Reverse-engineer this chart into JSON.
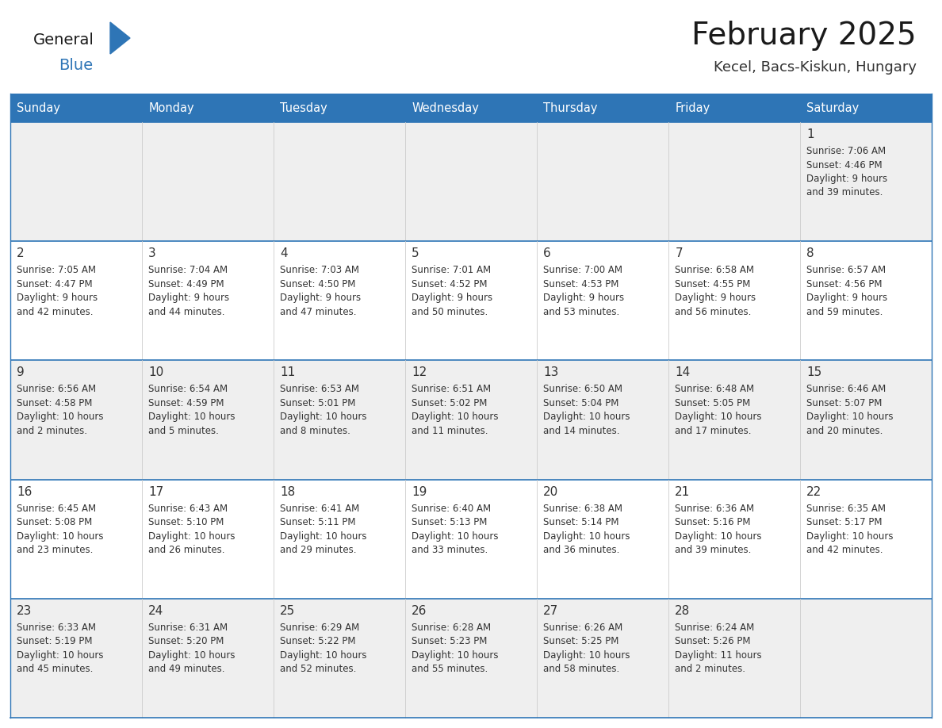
{
  "title": "February 2025",
  "subtitle": "Kecel, Bacs-Kiskun, Hungary",
  "days_of_week": [
    "Sunday",
    "Monday",
    "Tuesday",
    "Wednesday",
    "Thursday",
    "Friday",
    "Saturday"
  ],
  "header_bg": "#2E75B6",
  "header_text": "#FFFFFF",
  "row_bg_odd": "#EFEFEF",
  "row_bg_even": "#FFFFFF",
  "day_num_strip_odd": "#E2E2E2",
  "day_num_strip_even": "#F0F0F0",
  "cell_border_color": "#2E75B6",
  "cell_vert_color": "#CCCCCC",
  "day_num_color": "#333333",
  "cell_text_color": "#333333",
  "title_color": "#1a1a1a",
  "subtitle_color": "#333333",
  "logo_general_color": "#1a1a1a",
  "logo_blue_color": "#2E75B6",
  "calendar": [
    [
      null,
      null,
      null,
      null,
      null,
      null,
      {
        "day": 1,
        "sunrise": "7:06 AM",
        "sunset": "4:46 PM",
        "daylight": "9 hours and 39 minutes."
      }
    ],
    [
      {
        "day": 2,
        "sunrise": "7:05 AM",
        "sunset": "4:47 PM",
        "daylight": "9 hours and 42 minutes."
      },
      {
        "day": 3,
        "sunrise": "7:04 AM",
        "sunset": "4:49 PM",
        "daylight": "9 hours and 44 minutes."
      },
      {
        "day": 4,
        "sunrise": "7:03 AM",
        "sunset": "4:50 PM",
        "daylight": "9 hours and 47 minutes."
      },
      {
        "day": 5,
        "sunrise": "7:01 AM",
        "sunset": "4:52 PM",
        "daylight": "9 hours and 50 minutes."
      },
      {
        "day": 6,
        "sunrise": "7:00 AM",
        "sunset": "4:53 PM",
        "daylight": "9 hours and 53 minutes."
      },
      {
        "day": 7,
        "sunrise": "6:58 AM",
        "sunset": "4:55 PM",
        "daylight": "9 hours and 56 minutes."
      },
      {
        "day": 8,
        "sunrise": "6:57 AM",
        "sunset": "4:56 PM",
        "daylight": "9 hours and 59 minutes."
      }
    ],
    [
      {
        "day": 9,
        "sunrise": "6:56 AM",
        "sunset": "4:58 PM",
        "daylight": "10 hours and 2 minutes."
      },
      {
        "day": 10,
        "sunrise": "6:54 AM",
        "sunset": "4:59 PM",
        "daylight": "10 hours and 5 minutes."
      },
      {
        "day": 11,
        "sunrise": "6:53 AM",
        "sunset": "5:01 PM",
        "daylight": "10 hours and 8 minutes."
      },
      {
        "day": 12,
        "sunrise": "6:51 AM",
        "sunset": "5:02 PM",
        "daylight": "10 hours and 11 minutes."
      },
      {
        "day": 13,
        "sunrise": "6:50 AM",
        "sunset": "5:04 PM",
        "daylight": "10 hours and 14 minutes."
      },
      {
        "day": 14,
        "sunrise": "6:48 AM",
        "sunset": "5:05 PM",
        "daylight": "10 hours and 17 minutes."
      },
      {
        "day": 15,
        "sunrise": "6:46 AM",
        "sunset": "5:07 PM",
        "daylight": "10 hours and 20 minutes."
      }
    ],
    [
      {
        "day": 16,
        "sunrise": "6:45 AM",
        "sunset": "5:08 PM",
        "daylight": "10 hours and 23 minutes."
      },
      {
        "day": 17,
        "sunrise": "6:43 AM",
        "sunset": "5:10 PM",
        "daylight": "10 hours and 26 minutes."
      },
      {
        "day": 18,
        "sunrise": "6:41 AM",
        "sunset": "5:11 PM",
        "daylight": "10 hours and 29 minutes."
      },
      {
        "day": 19,
        "sunrise": "6:40 AM",
        "sunset": "5:13 PM",
        "daylight": "10 hours and 33 minutes."
      },
      {
        "day": 20,
        "sunrise": "6:38 AM",
        "sunset": "5:14 PM",
        "daylight": "10 hours and 36 minutes."
      },
      {
        "day": 21,
        "sunrise": "6:36 AM",
        "sunset": "5:16 PM",
        "daylight": "10 hours and 39 minutes."
      },
      {
        "day": 22,
        "sunrise": "6:35 AM",
        "sunset": "5:17 PM",
        "daylight": "10 hours and 42 minutes."
      }
    ],
    [
      {
        "day": 23,
        "sunrise": "6:33 AM",
        "sunset": "5:19 PM",
        "daylight": "10 hours and 45 minutes."
      },
      {
        "day": 24,
        "sunrise": "6:31 AM",
        "sunset": "5:20 PM",
        "daylight": "10 hours and 49 minutes."
      },
      {
        "day": 25,
        "sunrise": "6:29 AM",
        "sunset": "5:22 PM",
        "daylight": "10 hours and 52 minutes."
      },
      {
        "day": 26,
        "sunrise": "6:28 AM",
        "sunset": "5:23 PM",
        "daylight": "10 hours and 55 minutes."
      },
      {
        "day": 27,
        "sunrise": "6:26 AM",
        "sunset": "5:25 PM",
        "daylight": "10 hours and 58 minutes."
      },
      {
        "day": 28,
        "sunrise": "6:24 AM",
        "sunset": "5:26 PM",
        "daylight": "11 hours and 2 minutes."
      },
      null
    ]
  ]
}
